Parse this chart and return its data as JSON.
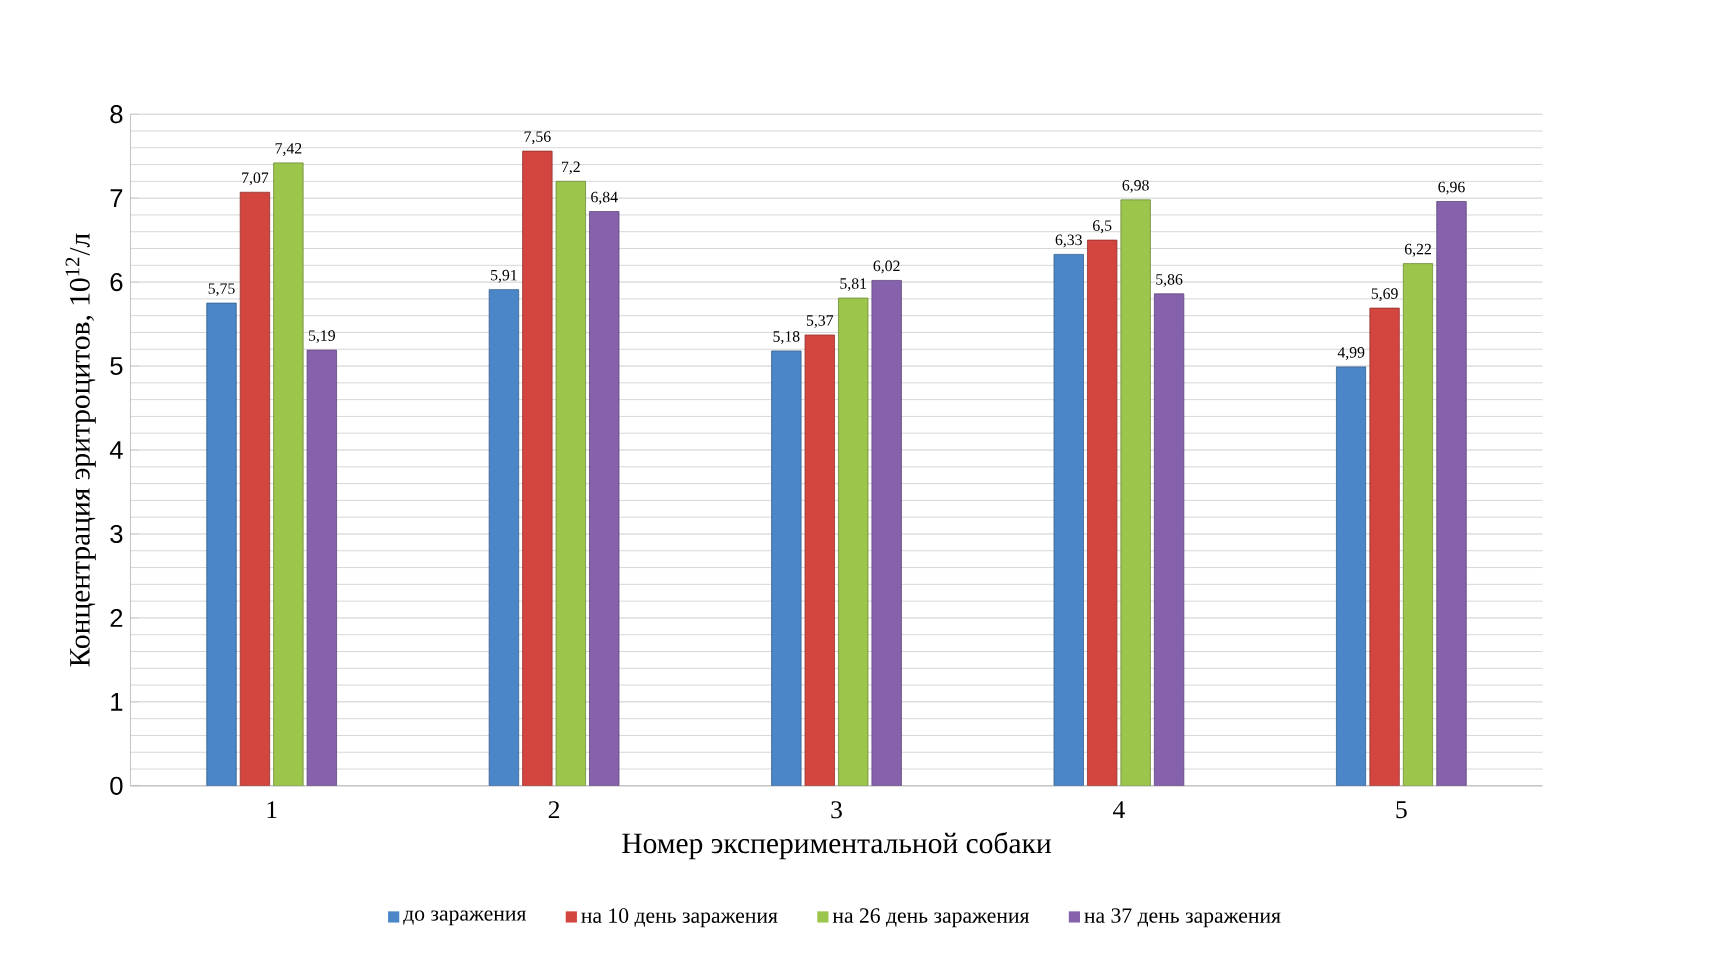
{
  "chart_data": {
    "type": "bar",
    "xlabel": "Номер экспериментальной собаки",
    "ylabel": "Концентрация эритроцитов, 10$^{12}$/л",
    "categories": [
      "1",
      "2",
      "3",
      "4",
      "5"
    ],
    "series": [
      {
        "name": "до заражения",
        "color": "#4a86c8",
        "values": [
          5.75,
          5.91,
          5.18,
          6.33,
          4.99
        ],
        "value_labels": [
          "5,75",
          "5,91",
          "5,18",
          "6,33",
          "4,99"
        ]
      },
      {
        "name": "на 10 день заражения",
        "color": "#d2463f",
        "values": [
          7.07,
          7.56,
          5.37,
          6.5,
          5.69
        ],
        "value_labels": [
          "7,07",
          "7,56",
          "5,37",
          "6,5",
          "5,69"
        ]
      },
      {
        "name": "на 26 день заражения",
        "color": "#9cc54c",
        "values": [
          7.42,
          7.2,
          5.81,
          6.98,
          6.22
        ],
        "value_labels": [
          "7,42",
          "7,2",
          "5,81",
          "6,98",
          "6,22"
        ]
      },
      {
        "name": "на 37 день заражения",
        "color": "#8662ad",
        "values": [
          5.19,
          6.84,
          6.02,
          5.86,
          6.96
        ],
        "value_labels": [
          "5,19",
          "6,84",
          "6,02",
          "5,86",
          "6,96"
        ]
      }
    ],
    "ylim": [
      0,
      8
    ],
    "yticks": [
      0,
      1,
      2,
      3,
      4,
      5,
      6,
      7,
      8
    ],
    "grid": "y",
    "legend": "bottom"
  }
}
